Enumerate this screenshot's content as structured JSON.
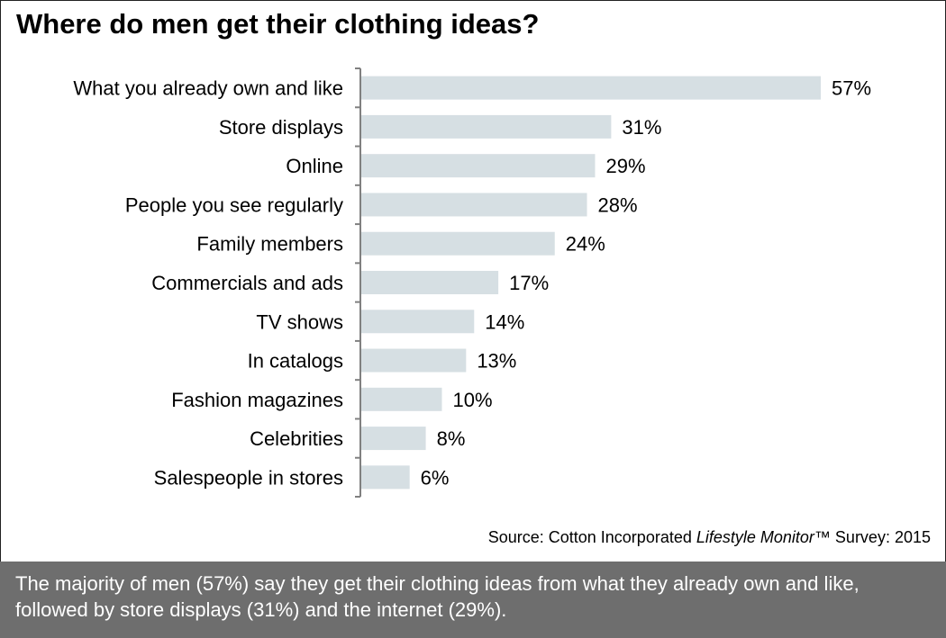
{
  "chart_data": {
    "type": "bar",
    "orientation": "horizontal",
    "title": "Where do men get their clothing ideas?",
    "categories": [
      "What you already own and like",
      "Store displays",
      "Online",
      "People you see regularly",
      "Family members",
      "Commercials and ads",
      "TV shows",
      "In catalogs",
      "Fashion magazines",
      "Celebrities",
      "Salespeople in stores"
    ],
    "values": [
      57,
      31,
      29,
      28,
      24,
      17,
      14,
      13,
      10,
      8,
      6
    ],
    "value_labels": [
      "57%",
      "31%",
      "29%",
      "28%",
      "24%",
      "17%",
      "14%",
      "13%",
      "10%",
      "8%",
      "6%"
    ],
    "unit": "%",
    "xlim": [
      0,
      57
    ],
    "grid": false,
    "bar_color": "#d6dfe3"
  },
  "source": {
    "prefix": "Source: Cotton Incorporated ",
    "italic": "Lifestyle Monitor",
    "suffix": "™ Survey: 2015"
  },
  "footer": {
    "text": "The majority of men (57%) say they get their clothing ideas from what they already own and like, followed by store displays (31%) and the internet (29%).",
    "background": "#6e6e6e"
  }
}
